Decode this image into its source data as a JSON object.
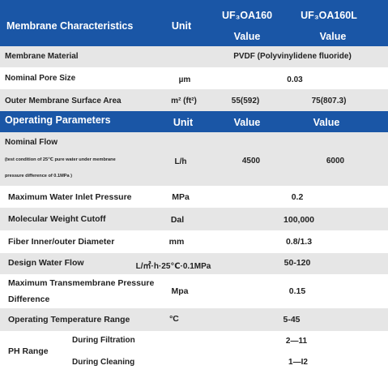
{
  "header1": {
    "label": "Membrane Characteristics",
    "unit": "Unit",
    "model1": "UF₃OA160",
    "model2": "UF₃OA160L",
    "value": "Value"
  },
  "rows1": {
    "material": {
      "label": "Membrane Material",
      "value": "PVDF (Polyvinylidene fluoride)"
    },
    "pore": {
      "label": "Nominal Pore Size",
      "unit": "µm",
      "value": "0.03"
    },
    "area": {
      "label": "Outer Membrane Surface Area",
      "unit": "m² (ft²)",
      "v1": "55(592)",
      "v2": "75(807.3)"
    }
  },
  "header2": {
    "label": "Operating Parameters",
    "unit": "Unit",
    "value1": "Value",
    "value2": "Value"
  },
  "flow": {
    "label": "Nominal Flow",
    "note_line1": "(test condition of 25℃ pure water under membrane",
    "note_line2": "pressure difference of 0.1MPa )",
    "unit": "L/h",
    "v1": "4500",
    "v2": "6000"
  },
  "rows2": {
    "inlet": {
      "label": "Maximum Water Inlet Pressure",
      "unit": "MPa",
      "value": "0.2"
    },
    "mwco": {
      "label": "Molecular Weight Cutoff",
      "unit": "Dal",
      "value": "100,000"
    },
    "fiber": {
      "label": "Fiber Inner/outer Diameter",
      "unit": "mm",
      "value": "0.8/1.3"
    },
    "design": {
      "label": "Design Water Flow",
      "unit": "L/㎡·h·25℃·0.1MPa",
      "value": "50-120"
    },
    "tmp": {
      "label_line1": "Maximum Transmembrane Pressure",
      "label_line2": "Difference",
      "unit": "Mpa",
      "value": "0.15"
    },
    "temp": {
      "label": "Operating Temperature Range",
      "unit": "°C",
      "value": "5-45"
    }
  },
  "ph": {
    "label": "PH Range",
    "filtration": {
      "label": "During Filtration",
      "value": "2—11"
    },
    "cleaning": {
      "label": "During Cleaning",
      "value": "1—I2"
    }
  }
}
